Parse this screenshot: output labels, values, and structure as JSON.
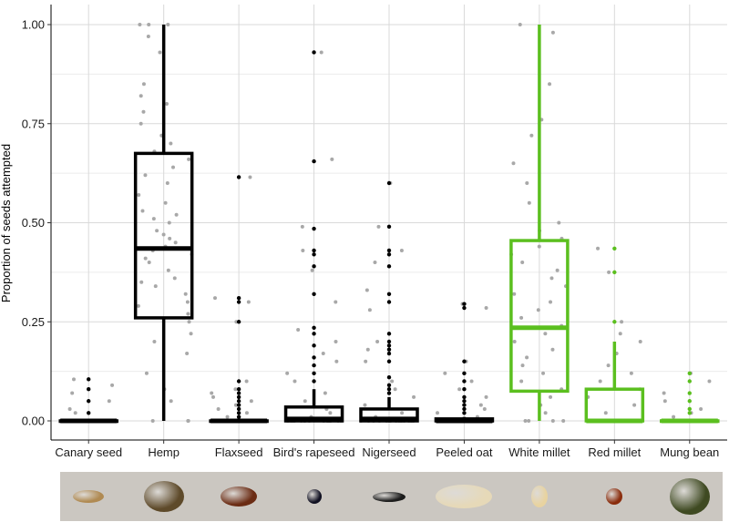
{
  "chart_data": {
    "type": "box",
    "title": "",
    "xlabel": "",
    "ylabel": "Proportion of seeds attempted",
    "ylim": [
      0,
      1
    ],
    "yticks": [
      0.0,
      0.25,
      0.5,
      0.75,
      1.0
    ],
    "ytick_labels": [
      "0.00",
      "0.25",
      "0.50",
      "0.75",
      "1.00"
    ],
    "categories": [
      "Canary seed",
      "Hemp",
      "Flaxseed",
      "Bird's rapeseed",
      "Nigerseed",
      "Peeled oat",
      "White millet",
      "Red millet",
      "Mung bean"
    ],
    "colors": {
      "default_box": "#000000",
      "highlight_box": "#5bbf1f",
      "points": "#a8a8a8",
      "outliers": "#000000",
      "grid": "#d9d9d9",
      "axis": "#000000"
    },
    "boxes": [
      {
        "category": "Canary seed",
        "color": "#000000",
        "q1": 0,
        "median": 0,
        "q3": 0,
        "whisker_low": 0,
        "whisker_high": 0,
        "outliers": [
          0.02,
          0.05,
          0.08,
          0.105
        ]
      },
      {
        "category": "Hemp",
        "color": "#000000",
        "q1": 0.26,
        "median": 0.435,
        "q3": 0.675,
        "whisker_low": 0,
        "whisker_high": 1.0,
        "outliers": []
      },
      {
        "category": "Flaxseed",
        "color": "#000000",
        "q1": 0,
        "median": 0,
        "q3": 0,
        "whisker_low": 0,
        "whisker_high": 0,
        "outliers": [
          0.01,
          0.02,
          0.03,
          0.04,
          0.05,
          0.06,
          0.07,
          0.08,
          0.1,
          0.25,
          0.3,
          0.31,
          0.615
        ]
      },
      {
        "category": "Bird's rapeseed",
        "color": "#000000",
        "q1": 0,
        "median": 0.005,
        "q3": 0.035,
        "whisker_low": 0,
        "whisker_high": 0.08,
        "outliers": [
          0.1,
          0.12,
          0.14,
          0.16,
          0.19,
          0.22,
          0.235,
          0.32,
          0.39,
          0.42,
          0.43,
          0.485,
          0.655,
          0.93
        ]
      },
      {
        "category": "Nigerseed",
        "color": "#000000",
        "q1": 0,
        "median": 0.005,
        "q3": 0.03,
        "whisker_low": 0,
        "whisker_high": 0.06,
        "outliers": [
          0.07,
          0.08,
          0.09,
          0.11,
          0.15,
          0.17,
          0.18,
          0.19,
          0.2,
          0.22,
          0.3,
          0.32,
          0.39,
          0.42,
          0.43,
          0.49,
          0.6
        ]
      },
      {
        "category": "Peeled oat",
        "color": "#000000",
        "q1": 0,
        "median": 0,
        "q3": 0.005,
        "whisker_low": 0,
        "whisker_high": 0.01,
        "outliers": [
          0.02,
          0.03,
          0.04,
          0.05,
          0.06,
          0.08,
          0.1,
          0.12,
          0.15,
          0.285,
          0.295
        ]
      },
      {
        "category": "White millet",
        "color": "#5bbf1f",
        "q1": 0.075,
        "median": 0.235,
        "q3": 0.455,
        "whisker_low": 0,
        "whisker_high": 1.0,
        "outliers": []
      },
      {
        "category": "Red millet",
        "color": "#5bbf1f",
        "q1": 0,
        "median": 0,
        "q3": 0.08,
        "whisker_low": 0,
        "whisker_high": 0.2,
        "outliers": [
          0.25,
          0.375,
          0.435
        ]
      },
      {
        "category": "Mung bean",
        "color": "#5bbf1f",
        "q1": 0,
        "median": 0,
        "q3": 0,
        "whisker_low": 0,
        "whisker_high": 0,
        "outliers": [
          0.02,
          0.03,
          0.05,
          0.07,
          0.1,
          0.12
        ]
      }
    ],
    "jitter_points": [
      [
        0,
        0,
        0,
        0,
        0,
        0,
        0,
        0,
        0,
        0,
        0,
        0,
        0,
        0,
        0,
        0,
        0,
        0,
        0.02,
        0.03,
        0.05,
        0.07,
        0.09,
        0.105
      ],
      [
        0,
        0,
        0,
        0.05,
        0.08,
        0.12,
        0.17,
        0.2,
        0.22,
        0.25,
        0.27,
        0.29,
        0.3,
        0.32,
        0.34,
        0.35,
        0.36,
        0.38,
        0.4,
        0.41,
        0.42,
        0.43,
        0.44,
        0.45,
        0.46,
        0.47,
        0.48,
        0.5,
        0.51,
        0.52,
        0.53,
        0.55,
        0.57,
        0.6,
        0.62,
        0.64,
        0.66,
        0.68,
        0.7,
        0.72,
        0.75,
        0.78,
        0.8,
        0.82,
        0.85,
        0.93,
        0.97,
        1.0,
        1.0,
        1.0
      ],
      [
        0,
        0,
        0,
        0,
        0,
        0,
        0,
        0,
        0,
        0,
        0,
        0,
        0,
        0,
        0,
        0,
        0,
        0,
        0,
        0,
        0.01,
        0.02,
        0.03,
        0.04,
        0.05,
        0.06,
        0.07,
        0.08,
        0.1,
        0.25,
        0.3,
        0.31,
        0.615
      ],
      [
        0,
        0,
        0,
        0,
        0,
        0,
        0,
        0,
        0,
        0,
        0,
        0,
        0,
        0,
        0,
        0,
        0.01,
        0.02,
        0.03,
        0.05,
        0.07,
        0.1,
        0.12,
        0.15,
        0.17,
        0.2,
        0.23,
        0.3,
        0.38,
        0.43,
        0.49,
        0.66,
        0.93
      ],
      [
        0,
        0,
        0,
        0,
        0,
        0,
        0,
        0,
        0,
        0,
        0,
        0,
        0,
        0,
        0,
        0,
        0.01,
        0.02,
        0.04,
        0.06,
        0.08,
        0.1,
        0.15,
        0.18,
        0.2,
        0.28,
        0.33,
        0.4,
        0.43,
        0.49,
        0.6
      ],
      [
        0,
        0,
        0,
        0,
        0,
        0,
        0,
        0,
        0,
        0,
        0,
        0,
        0,
        0,
        0,
        0,
        0,
        0,
        0,
        0.01,
        0.02,
        0.03,
        0.04,
        0.06,
        0.08,
        0.1,
        0.12,
        0.15,
        0.285,
        0.295
      ],
      [
        0,
        0,
        0,
        0,
        0.02,
        0.04,
        0.06,
        0.08,
        0.1,
        0.12,
        0.14,
        0.16,
        0.18,
        0.2,
        0.22,
        0.24,
        0.26,
        0.28,
        0.3,
        0.32,
        0.34,
        0.36,
        0.38,
        0.4,
        0.42,
        0.44,
        0.46,
        0.48,
        0.5,
        0.55,
        0.6,
        0.65,
        0.72,
        0.76,
        0.85,
        0.98,
        1.0
      ],
      [
        0,
        0,
        0,
        0,
        0,
        0,
        0,
        0,
        0,
        0,
        0,
        0,
        0.02,
        0.04,
        0.06,
        0.08,
        0.1,
        0.12,
        0.14,
        0.17,
        0.2,
        0.22,
        0.25,
        0.375,
        0.435
      ],
      [
        0,
        0,
        0,
        0,
        0,
        0,
        0,
        0,
        0,
        0,
        0,
        0,
        0,
        0,
        0,
        0,
        0.01,
        0.02,
        0.03,
        0.05,
        0.07,
        0.1,
        0.12
      ]
    ]
  },
  "seed_images": [
    {
      "name": "canary-seed",
      "color": "#b08a52"
    },
    {
      "name": "hemp-seed",
      "color": "#5e4a2a"
    },
    {
      "name": "flaxseed",
      "color": "#6b2c14"
    },
    {
      "name": "birds-rapeseed",
      "color": "#111122"
    },
    {
      "name": "nigerseed",
      "color": "#1c1c1c"
    },
    {
      "name": "peeled-oat",
      "color": "#e6d9b8"
    },
    {
      "name": "white-millet",
      "color": "#e8d3a0"
    },
    {
      "name": "red-millet",
      "color": "#8a2c0c"
    },
    {
      "name": "mung-bean",
      "color": "#3f4a22"
    }
  ]
}
